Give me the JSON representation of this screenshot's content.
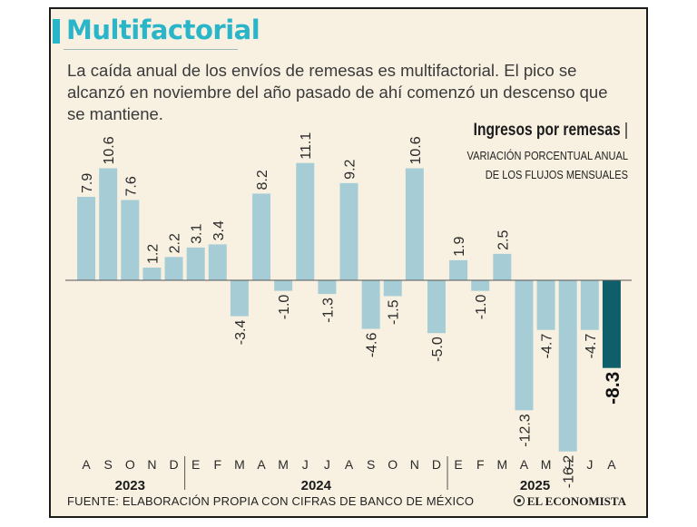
{
  "header": {
    "title": "Multifactorial",
    "subtitle": "La caída anual de los envíos de remesas es multifactorial. El pico se alcanzó en noviembre del año pasado de ahí comenzó un descenso que se mantiene."
  },
  "chart_heading": {
    "title": "Ingresos por remesas",
    "separator": "|",
    "subtitle": "VARIACIÓN PORCENTUAL ANUAL DE LOS FLUJOS MENSUALES"
  },
  "footer": {
    "source": "FUENTE: ELABORACIÓN PROPIA CON CIFRAS DE BANCO DE MÉXICO",
    "brand": "EL ECONOMISTA"
  },
  "colors": {
    "bar": "#a6cdd6",
    "highlight_bar": "#0f5f6b",
    "accent": "#2bb5c8",
    "background": "#f8f1e2"
  },
  "chart_data": {
    "type": "bar",
    "title": "Ingresos por remesas",
    "ylabel": "Variación porcentual anual",
    "categories": [
      "A",
      "S",
      "O",
      "N",
      "D",
      "E",
      "F",
      "M",
      "A",
      "M",
      "J",
      "J",
      "A",
      "S",
      "O",
      "N",
      "D",
      "E",
      "F",
      "M",
      "A",
      "M",
      "J",
      "J",
      "A"
    ],
    "values": [
      7.9,
      10.6,
      7.6,
      1.2,
      2.2,
      3.1,
      3.4,
      -3.4,
      8.2,
      -1.0,
      11.1,
      -1.3,
      9.2,
      -4.6,
      -1.5,
      10.6,
      -5.0,
      1.9,
      -1.0,
      2.5,
      -12.3,
      -4.7,
      -16.2,
      -4.7,
      -8.3
    ],
    "labels": [
      "7.9",
      "10.6",
      "7.6",
      "1.2",
      "2.2",
      "3.1",
      "3.4",
      "-3.4",
      "8.2",
      "-1.0",
      "11.1",
      "-1.3",
      "9.2",
      "-4.6",
      "-1.5",
      "10.6",
      "-5.0",
      "1.9",
      "-1.0",
      "2.5",
      "-12.3",
      "-4.7",
      "-16.2",
      "-4.7",
      "-8.3"
    ],
    "highlight_index": 24,
    "years": [
      {
        "label": "2023",
        "start": 0,
        "end": 4
      },
      {
        "label": "2024",
        "start": 5,
        "end": 16
      },
      {
        "label": "2025",
        "start": 17,
        "end": 24
      }
    ],
    "ylim": [
      -17,
      12
    ],
    "grid": false
  }
}
